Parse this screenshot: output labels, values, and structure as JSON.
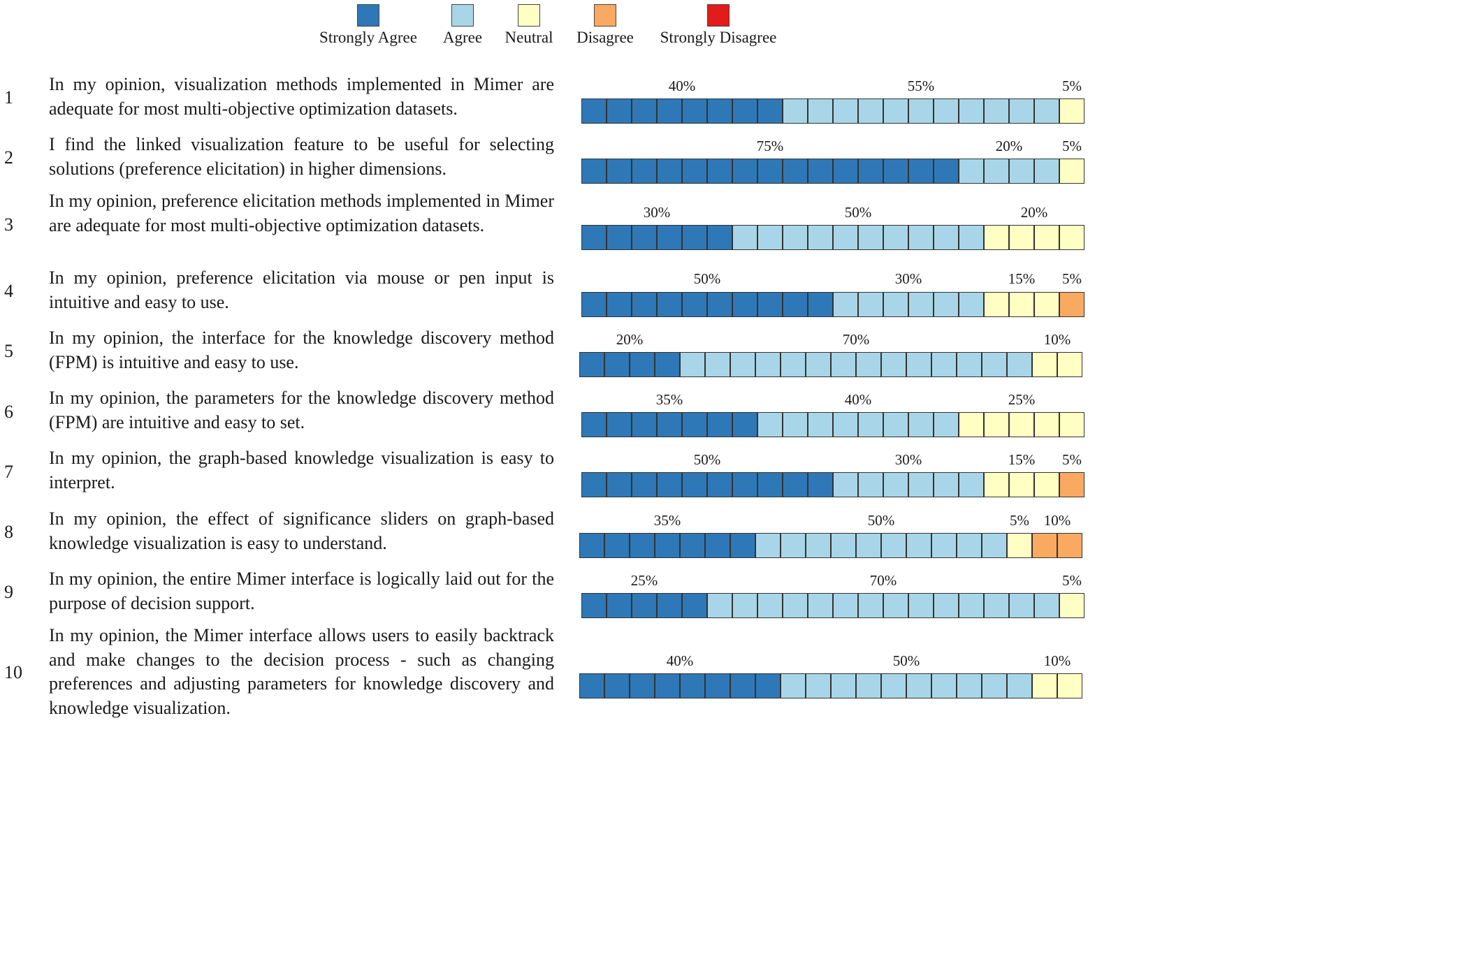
{
  "chart_data": {
    "type": "bar",
    "title": "",
    "legend": {
      "placement": "top",
      "entries": [
        {
          "label": "Strongly Agree",
          "color": "#2e78b7"
        },
        {
          "label": "Agree",
          "color": "#a8d6e8"
        },
        {
          "label": "Neutral",
          "color": "#ffffc4"
        },
        {
          "label": "Disagree",
          "color": "#f9aa60"
        },
        {
          "label": "Strongly Disagree",
          "color": "#e21b1b"
        }
      ]
    },
    "rows": [
      {
        "num": "1",
        "text": "In my opinion, visualization methods implemented in Mimer are adequate for most multi-objective optimization datasets.",
        "values": [
          40,
          55,
          5,
          0,
          0
        ]
      },
      {
        "num": "2",
        "text": "I find the linked visualization feature to be useful for selecting solutions (preference elicitation) in higher dimensions.",
        "values": [
          75,
          20,
          5,
          0,
          0
        ]
      },
      {
        "num": "3",
        "text": "In my opinion, preference elicitation methods implemented in Mimer are adequate for most multi-objective optimization datasets.",
        "values": [
          30,
          50,
          20,
          0,
          0
        ]
      },
      {
        "num": "4",
        "text": "In my opinion, preference elicitation via mouse or pen input is intuitive and easy to use.",
        "values": [
          50,
          30,
          15,
          5,
          0
        ]
      },
      {
        "num": "5",
        "text": "In my opinion, the interface for the knowledge discovery method (FPM) is intuitive and easy to use.",
        "values": [
          20,
          70,
          10,
          0,
          0
        ]
      },
      {
        "num": "6",
        "text": "In my opinion, the parameters for the knowledge discovery method (FPM) are intuitive and easy to set.",
        "values": [
          35,
          40,
          25,
          0,
          0
        ]
      },
      {
        "num": "7",
        "text": "In my opinion, the graph-based knowledge visualization is easy to interpret.",
        "values": [
          50,
          30,
          15,
          5,
          0
        ]
      },
      {
        "num": "8",
        "text": "In my opinion, the effect of significance sliders on graph-based knowledge visualization is easy to understand.",
        "values": [
          35,
          50,
          5,
          10,
          0
        ]
      },
      {
        "num": "9",
        "text": "In my opinion, the entire Mimer interface is logically laid out for the purpose of decision support.",
        "values": [
          25,
          70,
          5,
          0,
          0
        ]
      },
      {
        "num": "10",
        "text": "In my opinion, the Mimer interface allows users to easily backtrack and make changes to the decision process - such as changing preferences and adjusting parameters for knowledge discovery and knowledge visualization.",
        "values": [
          40,
          50,
          10,
          0,
          0
        ]
      }
    ]
  }
}
